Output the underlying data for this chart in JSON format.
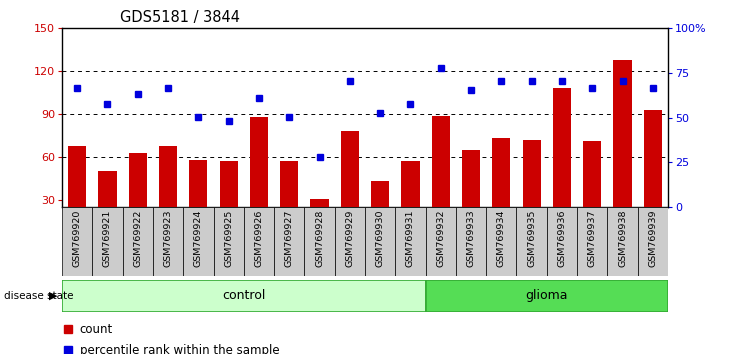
{
  "title": "GDS5181 / 3844",
  "samples": [
    "GSM769920",
    "GSM769921",
    "GSM769922",
    "GSM769923",
    "GSM769924",
    "GSM769925",
    "GSM769926",
    "GSM769927",
    "GSM769928",
    "GSM769929",
    "GSM769930",
    "GSM769931",
    "GSM769932",
    "GSM769933",
    "GSM769934",
    "GSM769935",
    "GSM769936",
    "GSM769937",
    "GSM769938",
    "GSM769939"
  ],
  "bar_values": [
    68,
    50,
    63,
    68,
    58,
    57,
    88,
    57,
    31,
    78,
    43,
    57,
    89,
    65,
    73,
    72,
    108,
    71,
    128,
    93
  ],
  "dot_values_left": [
    108,
    97,
    104,
    108,
    88,
    85,
    101,
    88,
    60,
    113,
    91,
    97,
    122,
    107,
    113,
    113,
    113,
    108,
    113,
    108
  ],
  "control_count": 12,
  "glioma_count": 8,
  "left_ylim": [
    25,
    150
  ],
  "right_ylim": [
    0,
    100
  ],
  "left_yticks": [
    30,
    60,
    90,
    120,
    150
  ],
  "right_yticks": [
    0,
    25,
    50,
    75,
    100
  ],
  "right_yticklabels": [
    "0",
    "25",
    "50",
    "75",
    "100%"
  ],
  "bar_color": "#cc0000",
  "dot_color": "#0000dd",
  "control_bg": "#ccffcc",
  "glioma_bg": "#55dd55",
  "sample_bg": "#cccccc",
  "grid_lines": [
    60,
    90,
    120
  ],
  "legend_bar_label": "count",
  "legend_dot_label": "percentile rank within the sample",
  "disease_state_text": "disease state",
  "control_text": "control",
  "glioma_text": "glioma"
}
